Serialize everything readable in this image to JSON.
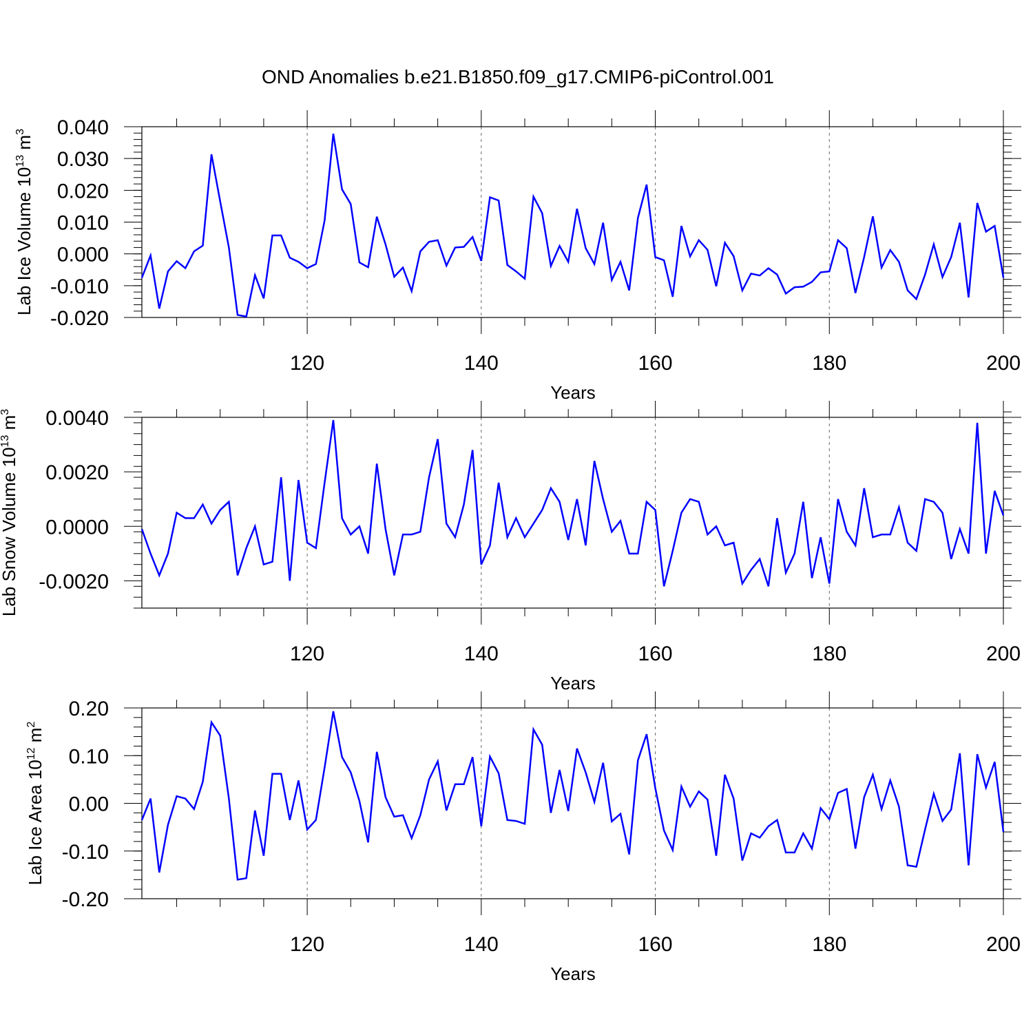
{
  "title": "OND Anomalies b.e21.B1850.f09_g17.CMIP6-piControl.001",
  "line_color": "#0000ff",
  "chart_data": [
    {
      "type": "line",
      "title": "OND Anomalies b.e21.B1850.f09_g17.CMIP6-piControl.001",
      "xlabel": "Years",
      "ylabel": "Lab Ice Volume 10",
      "ylabel_sup": "13",
      "ylabel_unit": " m",
      "ylabel_unit_sup": "3",
      "xlim": [
        101,
        200
      ],
      "ylim": [
        -0.02,
        0.04
      ],
      "xticks": [
        "120",
        "140",
        "160",
        "180",
        "200"
      ],
      "yticks": [
        "-0.020",
        "-0.010",
        "0.000",
        "0.010",
        "0.020",
        "0.030",
        "0.040"
      ],
      "x_start": 101,
      "series": [
        {
          "name": "Lab Ice Volume",
          "values": [
            -0.0075,
            -0.0005,
            -0.0172,
            -0.0055,
            -0.0023,
            -0.0045,
            0.0008,
            0.0026,
            0.0313,
            0.0165,
            0.002,
            -0.0192,
            -0.0197,
            -0.0067,
            -0.014,
            0.0058,
            0.0058,
            -0.0012,
            -0.0025,
            -0.0045,
            -0.0032,
            0.0105,
            0.0378,
            0.0203,
            0.0157,
            -0.0027,
            -0.0042,
            0.0117,
            0.003,
            -0.0072,
            -0.0043,
            -0.0117,
            0.0008,
            0.0038,
            0.0043,
            -0.0037,
            0.002,
            0.0022,
            0.0053,
            -0.0022,
            0.0178,
            0.0168,
            -0.0035,
            -0.0055,
            -0.0078,
            0.018,
            0.0128,
            -0.0038,
            0.0025,
            -0.0025,
            0.0142,
            0.0018,
            -0.0032,
            0.0098,
            -0.0082,
            -0.0025,
            -0.0115,
            0.0113,
            0.0218,
            -0.001,
            -0.002,
            -0.0135,
            0.0088,
            -0.0008,
            0.0043,
            0.0013,
            -0.0102,
            0.0035,
            -0.0007,
            -0.0115,
            -0.0062,
            -0.0068,
            -0.0045,
            -0.0065,
            -0.0125,
            -0.0105,
            -0.0103,
            -0.0088,
            -0.0058,
            -0.0055,
            0.0043,
            0.0018,
            -0.0123,
            -0.001,
            0.0118,
            -0.0043,
            0.0012,
            -0.0025,
            -0.0115,
            -0.0142,
            -0.0065,
            0.003,
            -0.0073,
            -0.001,
            0.0098,
            -0.0137,
            0.016,
            0.007,
            0.0088,
            -0.0075
          ]
        }
      ]
    },
    {
      "type": "line",
      "xlabel": "Years",
      "ylabel": "Lab Snow Volume 10",
      "ylabel_sup": "13",
      "ylabel_unit": " m",
      "ylabel_unit_sup": "3",
      "xlim": [
        101,
        200
      ],
      "ylim": [
        -0.003,
        0.004
      ],
      "xticks": [
        "120",
        "140",
        "160",
        "180",
        "200"
      ],
      "yticks": [
        "-0.0020",
        "0.0000",
        "0.0020",
        "0.0040"
      ],
      "x_start": 101,
      "series": [
        {
          "name": "Lab Snow Volume",
          "values": [
            -0.0001,
            -0.001,
            -0.0018,
            -0.001,
            0.0005,
            0.0003,
            0.0003,
            0.0008,
            0.0001,
            0.0006,
            0.0009,
            -0.0018,
            -0.0008,
            0.0,
            -0.0014,
            -0.0013,
            0.0018,
            -0.002,
            0.0017,
            -0.0006,
            -0.0008,
            0.0016,
            0.0039,
            0.0003,
            -0.0003,
            0.0,
            -0.001,
            0.0023,
            -0.0001,
            -0.0018,
            -0.0003,
            -0.0003,
            -0.0002,
            0.0018,
            0.0032,
            0.0001,
            -0.0004,
            0.0008,
            0.0028,
            -0.0014,
            -0.0007,
            0.0016,
            -0.0004,
            0.0003,
            -0.0004,
            0.0001,
            0.0006,
            0.0014,
            0.0009,
            -0.0005,
            0.001,
            -0.0007,
            0.0024,
            0.001,
            -0.0002,
            0.0002,
            -0.001,
            -0.001,
            0.0009,
            0.0006,
            -0.0022,
            -0.0009,
            0.0005,
            0.001,
            0.0009,
            -0.0003,
            -0.0,
            -0.0007,
            -0.0006,
            -0.0021,
            -0.0016,
            -0.0012,
            -0.0022,
            0.0003,
            -0.0017,
            -0.001,
            0.0009,
            -0.0019,
            -0.0004,
            -0.0021,
            0.001,
            -0.0002,
            -0.0007,
            0.0014,
            -0.0004,
            -0.0003,
            -0.0003,
            0.0007,
            -0.0006,
            -0.0009,
            0.001,
            0.0009,
            0.0005,
            -0.0012,
            -0.0001,
            -0.001,
            0.0038,
            -0.001,
            0.0013,
            0.0004
          ]
        }
      ]
    },
    {
      "type": "line",
      "xlabel": "Years",
      "ylabel": "Lab Ice Area 10",
      "ylabel_sup": "12",
      "ylabel_unit": " m",
      "ylabel_unit_sup": "2",
      "xlim": [
        101,
        200
      ],
      "ylim": [
        -0.2,
        0.2
      ],
      "xticks": [
        "120",
        "140",
        "160",
        "180",
        "200"
      ],
      "yticks": [
        "-0.20",
        "-0.10",
        "0.00",
        "0.10",
        "0.20"
      ],
      "x_start": 101,
      "series": [
        {
          "name": "Lab Ice Area",
          "values": [
            -0.035,
            0.01,
            -0.145,
            -0.045,
            0.015,
            0.01,
            -0.012,
            0.045,
            0.17,
            0.142,
            0.01,
            -0.16,
            -0.157,
            -0.015,
            -0.11,
            0.062,
            0.062,
            -0.035,
            0.048,
            -0.055,
            -0.035,
            0.075,
            0.193,
            0.097,
            0.065,
            0.005,
            -0.082,
            0.108,
            0.013,
            -0.028,
            -0.025,
            -0.073,
            -0.025,
            0.05,
            0.088,
            -0.015,
            0.04,
            0.04,
            0.097,
            -0.048,
            0.098,
            0.063,
            -0.035,
            -0.037,
            -0.043,
            0.155,
            0.123,
            -0.02,
            0.07,
            -0.016,
            0.115,
            0.065,
            0.003,
            0.085,
            -0.038,
            -0.022,
            -0.107,
            0.09,
            0.145,
            0.032,
            -0.057,
            -0.098,
            0.035,
            -0.007,
            0.025,
            0.008,
            -0.11,
            0.06,
            0.01,
            -0.12,
            -0.063,
            -0.072,
            -0.048,
            -0.035,
            -0.103,
            -0.103,
            -0.063,
            -0.095,
            -0.01,
            -0.033,
            0.022,
            0.03,
            -0.095,
            0.013,
            0.06,
            -0.012,
            0.048,
            -0.007,
            -0.13,
            -0.133,
            -0.055,
            0.02,
            -0.037,
            -0.013,
            0.105,
            -0.13,
            0.103,
            0.033,
            0.087,
            -0.06
          ]
        }
      ]
    }
  ]
}
